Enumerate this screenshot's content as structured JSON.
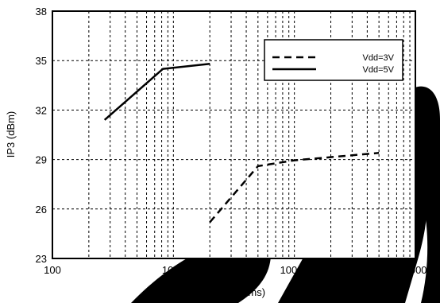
{
  "chart_data": {
    "type": "line",
    "xlabel": "Rbias (Ohms)",
    "ylabel": "IP3 (dBm)",
    "xscale": "log",
    "xlim": [
      100,
      100000
    ],
    "ylim": [
      23,
      38
    ],
    "xticks": [
      100,
      1000,
      10000,
      100000
    ],
    "xtick_labels": [
      "100",
      "1000",
      "10000",
      "100000"
    ],
    "yticks": [
      23,
      26,
      29,
      32,
      35,
      38
    ],
    "ytick_labels": [
      "23",
      "26",
      "29",
      "32",
      "35",
      "38"
    ],
    "grid": true,
    "legend_position": "top-right",
    "series": [
      {
        "name": "Vdd=3V",
        "style": "dashed",
        "color": "#000000",
        "x": [
          2000,
          5000,
          10000,
          50000
        ],
        "y": [
          25.2,
          28.6,
          28.95,
          29.4
        ]
      },
      {
        "name": "Vdd=5V",
        "style": "solid",
        "color": "#000000",
        "x": [
          270,
          820,
          2000
        ],
        "y": [
          31.4,
          34.5,
          34.8
        ]
      }
    ]
  },
  "watermark": {
    "color": "#000000"
  }
}
